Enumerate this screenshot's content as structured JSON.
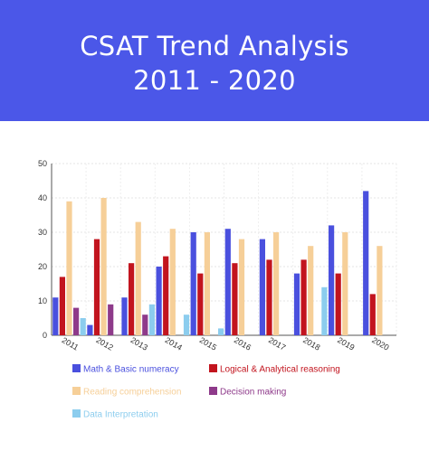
{
  "header": {
    "title_line1": "CSAT Trend Analysis",
    "title_line2": "2011 - 2020",
    "background": "#4b57e8"
  },
  "chart_data": {
    "type": "bar",
    "categories": [
      "2011",
      "2012",
      "2013",
      "2014",
      "2015",
      "2016",
      "2017",
      "2018",
      "2019",
      "2020"
    ],
    "series": [
      {
        "name": "Math & Basic numeracy",
        "color": "#4a50de",
        "values": [
          11,
          3,
          11,
          20,
          30,
          31,
          28,
          18,
          32,
          42
        ]
      },
      {
        "name": "Logical & Analytical reasoning",
        "color": "#c2141e",
        "values": [
          17,
          28,
          21,
          23,
          18,
          21,
          22,
          22,
          18,
          12
        ]
      },
      {
        "name": "Reading comprehension",
        "color": "#f6cf98",
        "values": [
          39,
          40,
          33,
          31,
          30,
          28,
          30,
          26,
          30,
          26
        ]
      },
      {
        "name": "Decision making",
        "color": "#8e3a8a",
        "values": [
          8,
          9,
          6,
          null,
          null,
          null,
          null,
          null,
          null,
          null
        ]
      },
      {
        "name": "Data Interpretation",
        "color": "#8ccdee",
        "values": [
          5,
          null,
          9,
          6,
          2,
          null,
          null,
          14,
          null,
          null
        ]
      }
    ],
    "yticks": [
      0,
      10,
      20,
      30,
      40,
      50
    ],
    "ylim": [
      0,
      50
    ],
    "grid": true,
    "legend_position": "bottom"
  }
}
